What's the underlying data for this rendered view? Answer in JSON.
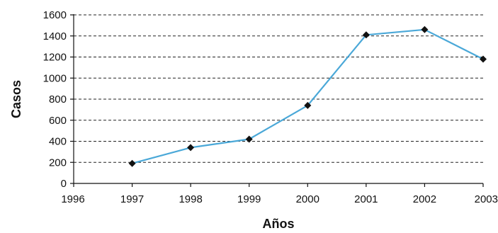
{
  "chart_data": {
    "type": "line",
    "title": "",
    "xlabel": "Años",
    "ylabel": "Casos",
    "x_ticks": [
      "1996",
      "1997",
      "1998",
      "1999",
      "2000",
      "2001",
      "2002",
      "2003"
    ],
    "y_ticks": [
      "0",
      "200",
      "400",
      "600",
      "800",
      "1000",
      "1200",
      "1400",
      "1600"
    ],
    "xlim": [
      1996,
      2003
    ],
    "ylim": [
      0,
      1600
    ],
    "grid": "horizontal dashed",
    "legend": "none",
    "series": [
      {
        "x": [
          1997,
          1998,
          1999,
          2000,
          2001,
          2002,
          2003
        ],
        "values": [
          190,
          340,
          420,
          740,
          1410,
          1460,
          1180
        ],
        "color": "#4aa8d8",
        "marker": "diamond",
        "marker_color": "#111111"
      }
    ]
  }
}
